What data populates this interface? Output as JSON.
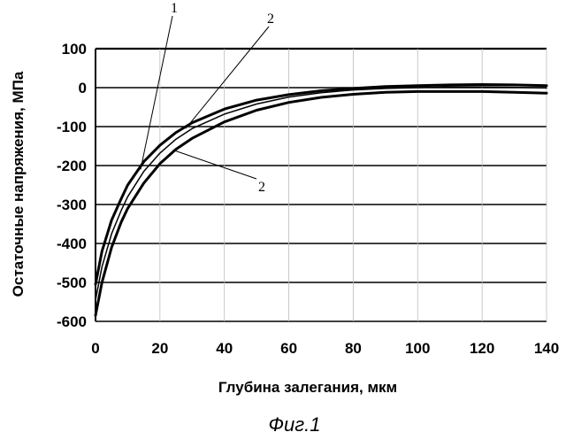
{
  "chart_data": {
    "type": "line",
    "title": "",
    "xlabel": "Глубина залегания, мкм",
    "ylabel": "Остаточные напряжения, МПа",
    "caption": "Фиг.1",
    "xlim": [
      0,
      140
    ],
    "ylim": [
      -600,
      100
    ],
    "xticks": [
      "0",
      "20",
      "40",
      "60",
      "80",
      "100",
      "120",
      "140"
    ],
    "yticks": [
      "100",
      "0",
      "-100",
      "-200",
      "-300",
      "-400",
      "-500",
      "-600"
    ],
    "grid": "horizontal",
    "legend": "none",
    "annotations": [
      {
        "text": "1",
        "target_series": 0
      },
      {
        "text": "2",
        "target_series": 1
      },
      {
        "text": "2",
        "target_series": 2
      }
    ],
    "series": [
      {
        "line_width": 3,
        "x": [
          0,
          2,
          5,
          8,
          10,
          15,
          20,
          25,
          30,
          40,
          50,
          60,
          70,
          80,
          90,
          100,
          110,
          120,
          130,
          140
        ],
        "y": [
          -505,
          -420,
          -340,
          -285,
          -250,
          -190,
          -148,
          -115,
          -90,
          -55,
          -32,
          -18,
          -8,
          -2,
          3,
          5,
          7,
          8,
          7,
          5
        ]
      },
      {
        "line_width": 1.5,
        "x": [
          0,
          2,
          5,
          8,
          10,
          15,
          20,
          25,
          30,
          40,
          50,
          60,
          70,
          80,
          90,
          100,
          110,
          120,
          130,
          140
        ],
        "y": [
          -545,
          -460,
          -375,
          -315,
          -280,
          -215,
          -168,
          -132,
          -105,
          -68,
          -42,
          -24,
          -13,
          -6,
          -2,
          0,
          2,
          2,
          1,
          -1
        ]
      },
      {
        "line_width": 3,
        "x": [
          0,
          2,
          5,
          8,
          10,
          15,
          20,
          25,
          30,
          40,
          50,
          60,
          70,
          80,
          90,
          100,
          110,
          120,
          130,
          140
        ],
        "y": [
          -585,
          -500,
          -410,
          -345,
          -310,
          -245,
          -195,
          -158,
          -130,
          -88,
          -58,
          -38,
          -25,
          -17,
          -12,
          -10,
          -10,
          -10,
          -12,
          -14
        ]
      }
    ]
  }
}
